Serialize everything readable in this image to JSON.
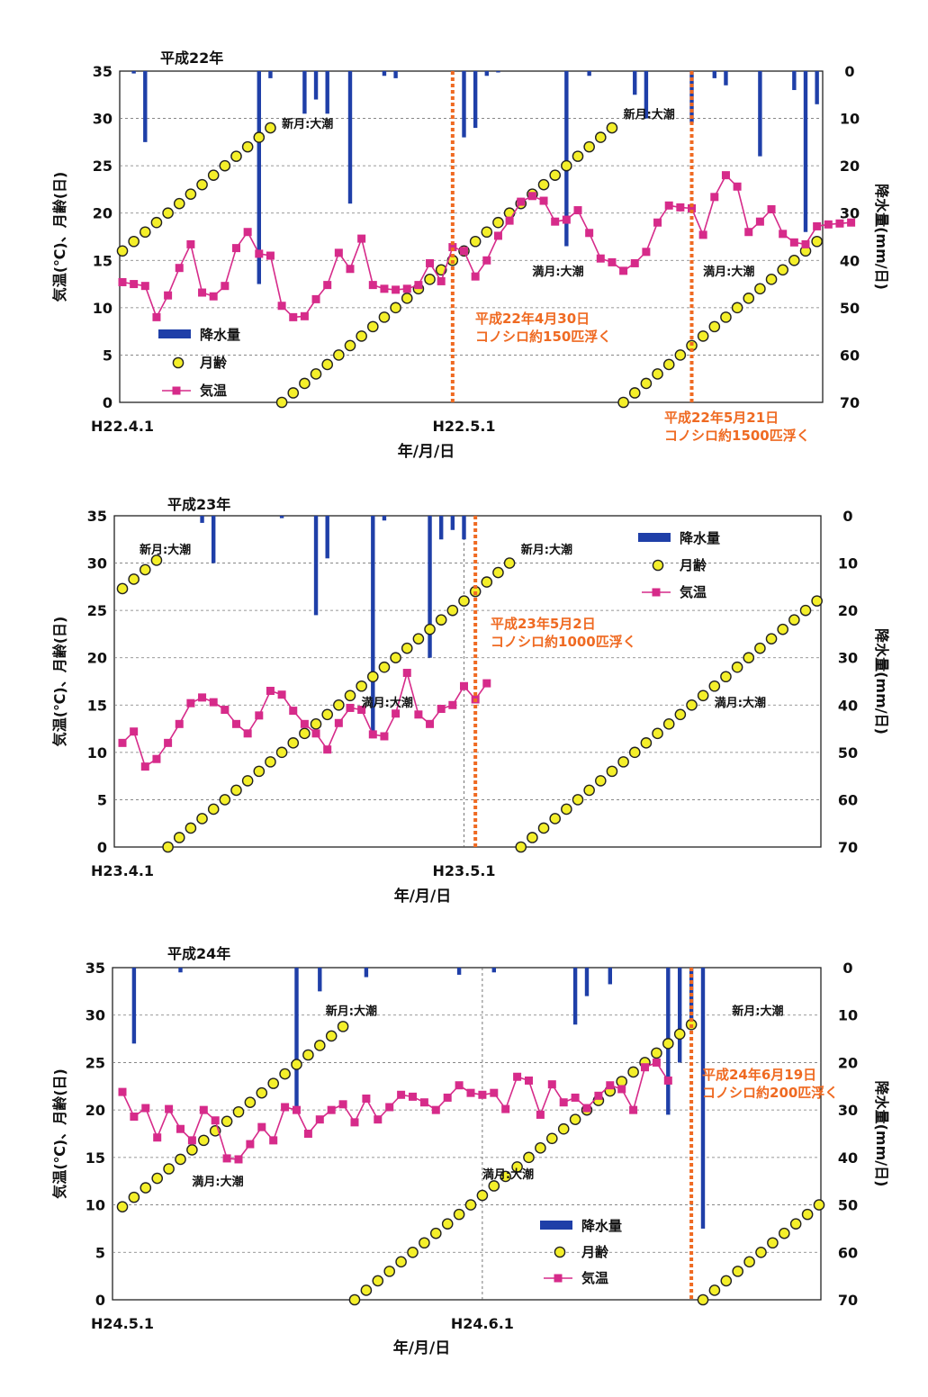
{
  "colors": {
    "rain": "#1f3fa8",
    "moon_fill": "#f4ef2a",
    "moon_stroke": "#222222",
    "temp": "#d62b8a",
    "event": "#ef6a22",
    "annotation": "#111111"
  },
  "chart_data": [
    {
      "type": "combo",
      "title": "平成22年",
      "xlabel": "年/月/日",
      "ylabel_left": "気温(℃)、月齢(日)",
      "ylabel_right": "降水量(mm/日)",
      "ylim_left": [
        0,
        35
      ],
      "ylim_right": [
        70,
        0
      ],
      "yticks_left": [
        "0",
        "5",
        "10",
        "15",
        "20",
        "25",
        "30",
        "35"
      ],
      "yticks_right": [
        "70",
        "60",
        "50",
        "40",
        "30",
        "20",
        "10",
        "0"
      ],
      "x_tick_labels": [
        "H22.4.1",
        "H22.5.1"
      ],
      "x_tick_days": [
        1,
        31
      ],
      "mid_gridline_day": null,
      "legend_position": "lower-left",
      "legend": {
        "rain": "降水量",
        "moon": "月齢",
        "temp": "気温"
      },
      "series": [
        {
          "name": "降水量",
          "unit": "mm/日",
          "days": [
            2,
            3,
            13,
            14,
            17,
            18,
            19,
            21,
            24,
            25,
            31,
            32,
            33,
            34,
            40,
            42,
            46,
            47,
            51,
            53,
            54,
            57,
            60,
            61,
            62
          ],
          "values": [
            0.5,
            15,
            45,
            1.5,
            9,
            6,
            9,
            28,
            1,
            1.5,
            14,
            12,
            1,
            0,
            37,
            1,
            5,
            10,
            11,
            1.5,
            3,
            18,
            4,
            34,
            7
          ]
        },
        {
          "name": "月齢",
          "unit": "日",
          "start_day": 1,
          "start_value": 16.0,
          "peak_value": 29.5,
          "step": 1.0
        },
        {
          "name": "気温",
          "unit": "℃",
          "start_day": 1,
          "values": [
            12.7,
            12.5,
            12.3,
            9,
            11.3,
            14.2,
            16.7,
            11.6,
            11.2,
            12.3,
            16.3,
            18,
            15.7,
            15.5,
            10.2,
            9,
            9.1,
            10.9,
            12.4,
            15.8,
            14.1,
            17.3,
            12.4,
            12,
            11.9,
            12,
            12.4,
            14.7,
            12.8,
            16.4,
            16,
            13.3,
            15,
            17.6,
            19.2,
            21.2,
            21.8,
            21.3,
            19.1,
            19.3,
            20.3,
            17.9,
            15.2,
            14.8,
            13.9,
            14.7,
            15.9,
            19,
            20.8,
            20.6,
            20.5,
            17.7,
            21.7,
            24,
            22.8,
            18,
            19.1,
            20.4,
            17.8,
            16.9,
            16.7,
            18.6,
            18.8,
            18.9,
            19
          ]
        }
      ],
      "events": [
        {
          "day": 30,
          "label_lines": [
            "平成22年4月30日",
            "コノシロ約150匹浮く"
          ]
        },
        {
          "day": 51,
          "label_lines": [
            "平成22年5月21日",
            "コノシロ約1500匹浮く"
          ]
        }
      ],
      "annotations": [
        {
          "text": "新月:大潮",
          "day": 15,
          "value": 29.5
        },
        {
          "text": "満月:大潮",
          "day": 37,
          "value": 13.9
        },
        {
          "text": "新月:大潮",
          "day": 45,
          "value": 30.5
        },
        {
          "text": "満月:大潮",
          "day": 52,
          "value": 13.9
        }
      ]
    },
    {
      "type": "combo",
      "title": "平成23年",
      "xlabel": "年/月/日",
      "ylabel_left": "気温(℃)、月齢(日)",
      "ylabel_right": "降水量(mm/日)",
      "ylim_left": [
        0,
        35
      ],
      "ylim_right": [
        70,
        0
      ],
      "yticks_left": [
        "0",
        "5",
        "10",
        "15",
        "20",
        "25",
        "30",
        "35"
      ],
      "yticks_right": [
        "70",
        "60",
        "50",
        "40",
        "30",
        "20",
        "10",
        "0"
      ],
      "x_tick_labels": [
        "H23.4.1",
        "H23.5.1"
      ],
      "x_tick_days": [
        1,
        31
      ],
      "mid_gridline_day": 31,
      "legend_position": "top-right",
      "legend": {
        "rain": "降水量",
        "moon": "月齢",
        "temp": "気温"
      },
      "series": [
        {
          "name": "降水量",
          "unit": "mm/日",
          "days": [
            8,
            9,
            15,
            18,
            19,
            23,
            24,
            28,
            29,
            30,
            31
          ],
          "values": [
            1.5,
            10,
            0.5,
            21,
            9,
            47,
            1,
            30,
            5,
            3,
            5
          ]
        },
        {
          "name": "月齢",
          "unit": "日",
          "start_day": 1,
          "start_value": 27.3,
          "peak_value": 30.3,
          "step": 1.0
        },
        {
          "name": "気温",
          "unit": "℃",
          "start_day": 1,
          "values": [
            11,
            12.2,
            8.5,
            9.3,
            11,
            13,
            15.2,
            15.8,
            15.3,
            14.5,
            13,
            12,
            13.9,
            16.5,
            16.1,
            14.4,
            13,
            12,
            10.3,
            13.1,
            14.7,
            14.5,
            11.9,
            11.7,
            14.1,
            18.4,
            14,
            13,
            14.6,
            15,
            17,
            15.6,
            17.3
          ]
        }
      ],
      "events": [
        {
          "day": 32,
          "label_lines": [
            "平成23年5月2日",
            "コノシロ約1000匹浮く"
          ]
        }
      ],
      "annotations": [
        {
          "text": "新月:大潮",
          "day": 2.5,
          "value": 31.5
        },
        {
          "text": "満月:大潮",
          "day": 22,
          "value": 15.3
        },
        {
          "text": "新月:大潮",
          "day": 36,
          "value": 31.5
        },
        {
          "text": "満月:大潮",
          "day": 53,
          "value": 15.3
        }
      ]
    },
    {
      "type": "combo",
      "title": "平成24年",
      "xlabel": "年/月/日",
      "ylabel_left": "気温(℃)、月齢(日)",
      "ylabel_right": "降水量(mm/日)",
      "ylim_left": [
        0,
        35
      ],
      "ylim_right": [
        70,
        0
      ],
      "yticks_left": [
        "0",
        "5",
        "10",
        "15",
        "20",
        "25",
        "30",
        "35"
      ],
      "yticks_right": [
        "70",
        "60",
        "50",
        "40",
        "30",
        "20",
        "10",
        "0"
      ],
      "x_tick_labels": [
        "H24.5.1",
        "H24.6.1"
      ],
      "x_tick_days": [
        1,
        32
      ],
      "mid_gridline_day": 32,
      "legend_position": "lower-center",
      "legend": {
        "rain": "降水量",
        "moon": "月齢",
        "temp": "気温"
      },
      "series": [
        {
          "name": "降水量",
          "unit": "mm/日",
          "days": [
            2,
            6,
            16,
            18,
            22,
            30,
            33,
            40,
            41,
            43,
            48,
            49,
            50,
            51
          ],
          "values": [
            16,
            1,
            30,
            5,
            2,
            1.5,
            1,
            12,
            6,
            3.5,
            31,
            20,
            11,
            55
          ]
        },
        {
          "name": "月齢",
          "unit": "日",
          "start_day": 1,
          "start_value": 9.8,
          "peak_value": 29.3,
          "step": 1.0
        },
        {
          "name": "気温",
          "unit": "℃",
          "start_day": 1,
          "values": [
            21.9,
            19.3,
            20.2,
            17.1,
            20.1,
            18,
            16.8,
            20,
            18.9,
            14.9,
            14.8,
            16.4,
            18.2,
            16.8,
            20.3,
            20,
            17.5,
            19,
            20,
            20.6,
            18.7,
            21.2,
            19,
            20.3,
            21.6,
            21.4,
            20.8,
            20,
            21.3,
            22.6,
            21.8,
            21.6,
            21.8,
            20.1,
            23.5,
            23.1,
            19.5,
            22.7,
            20.8,
            21.3,
            20.2,
            21.5,
            22.6,
            22.2,
            20,
            24.5,
            25,
            23.1
          ]
        }
      ],
      "events": [
        {
          "day": 50,
          "label_lines": [
            "平成24年6月19日",
            "コノシロ約200匹浮く"
          ]
        }
      ],
      "annotations": [
        {
          "text": "新月:大潮",
          "day": 18.5,
          "value": 30.5
        },
        {
          "text": "満月:大潮",
          "day": 7,
          "value": 12.5
        },
        {
          "text": "満月:大潮",
          "day": 32,
          "value": 13.3
        },
        {
          "text": "新月:大潮",
          "day": 53.5,
          "value": 30.5
        }
      ]
    }
  ]
}
